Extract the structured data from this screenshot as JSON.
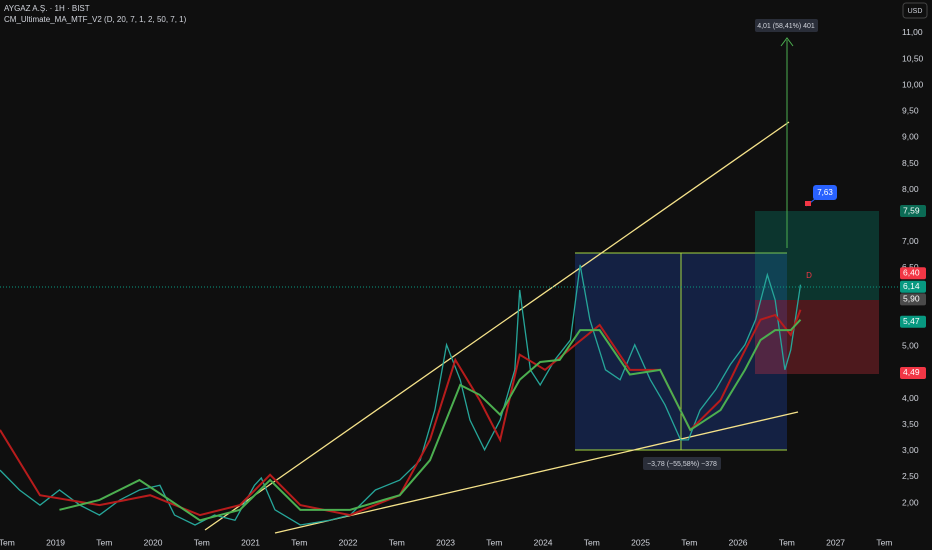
{
  "header": {
    "symbol": "AYGAZ A.Ş. · 1H · BIST",
    "indicator": "CM_Ultimate_MA_MTF_V2 (D, 20, 7, 1, 2, 50, 7, 1)",
    "currency": "USD"
  },
  "annotations": {
    "gain": "4,01 (58,41%) 401",
    "loss": "−3,78 (−55,58%) −378",
    "target": "7,63",
    "marker": "D"
  },
  "chart_data": {
    "type": "line",
    "grid": false,
    "xlim": [
      2018.43,
      2027.64
    ],
    "ylim": [
      1.35,
      11.63
    ],
    "xticks": [
      {
        "value": 2018.5,
        "label": "Tem"
      },
      2019,
      {
        "value": 2019.5,
        "label": "Tem"
      },
      2020,
      {
        "value": 2020.5,
        "label": "Tem"
      },
      2021,
      {
        "value": 2021.5,
        "label": "Tem"
      },
      2022,
      {
        "value": 2022.5,
        "label": "Tem"
      },
      2023,
      {
        "value": 2023.5,
        "label": "Tem"
      },
      2024,
      {
        "value": 2024.5,
        "label": "Tem"
      },
      2025,
      {
        "value": 2025.5,
        "label": "Tem"
      },
      2026,
      {
        "value": 2026.5,
        "label": "Tem"
      },
      2027,
      {
        "value": 2027.5,
        "label": "Tem"
      }
    ],
    "yticks": [
      {
        "value": 2,
        "label": "2,00"
      },
      {
        "value": 2.5,
        "label": "2,50"
      },
      {
        "value": 3,
        "label": "3,00"
      },
      {
        "value": 3.5,
        "label": "3,50"
      },
      {
        "value": 4,
        "label": "4,00"
      },
      {
        "value": 5,
        "label": "5,00"
      },
      {
        "value": 6.5,
        "label": "6,50"
      },
      {
        "value": 7,
        "label": "7,00"
      },
      {
        "value": 8,
        "label": "8,00"
      },
      {
        "value": 8.5,
        "label": "8,50"
      },
      {
        "value": 9,
        "label": "9,00"
      },
      {
        "value": 9.5,
        "label": "9,50"
      },
      {
        "value": 10,
        "label": "10,00"
      },
      {
        "value": 10.5,
        "label": "10,50"
      },
      {
        "value": 11,
        "label": "11,00"
      }
    ],
    "series": [
      {
        "color": "#26a69a",
        "x": [
          2018.43,
          2018.63,
          2018.84,
          2019.04,
          2019.25,
          2019.45,
          2019.66,
          2019.86,
          2020.07,
          2020.22,
          2020.43,
          2020.63,
          2020.84,
          2021.04,
          2021.11,
          2021.25,
          2021.51,
          2021.81,
          2022.02,
          2022.28,
          2022.53,
          2022.74,
          2022.89,
          2023.01,
          2023.15,
          2023.25,
          2023.4,
          2023.56,
          2023.71,
          2023.76,
          2023.87,
          2023.97,
          2024.12,
          2024.28,
          2024.38,
          2024.48,
          2024.64,
          2024.79,
          2024.94,
          2025.1,
          2025.25,
          2025.41,
          2025.49,
          2025.61,
          2025.77,
          2025.92,
          2026.07,
          2026.18,
          2026.3,
          2026.38,
          2026.48,
          2026.54,
          2026.64
        ],
        "values": [
          2.63,
          2.25,
          1.96,
          2.25,
          1.96,
          1.77,
          2.06,
          2.25,
          2.34,
          1.77,
          1.58,
          1.77,
          1.67,
          2.34,
          2.48,
          1.87,
          1.58,
          1.67,
          1.77,
          2.25,
          2.44,
          2.82,
          3.78,
          5.03,
          4.36,
          3.59,
          3.02,
          3.59,
          4.55,
          6.08,
          4.55,
          4.26,
          4.74,
          5.12,
          6.56,
          5.51,
          4.55,
          4.36,
          5.03,
          4.36,
          3.88,
          3.21,
          3.21,
          3.78,
          4.17,
          4.65,
          5.03,
          5.51,
          6.37,
          5.89,
          4.55,
          4.93,
          6.18
        ]
      },
      {
        "color": "#b71c1c",
        "x": [
          2018.43,
          2018.84,
          2019.45,
          2019.97,
          2020.48,
          2020.89,
          2021.2,
          2021.51,
          2022.02,
          2022.53,
          2022.84,
          2023.1,
          2023.35,
          2023.56,
          2023.76,
          2024.02,
          2024.33,
          2024.58,
          2024.89,
          2025.2,
          2025.51,
          2025.82,
          2026.02,
          2026.23,
          2026.38,
          2026.54,
          2026.64
        ],
        "values": [
          3.4,
          2.15,
          1.96,
          2.15,
          1.77,
          1.96,
          2.54,
          1.96,
          1.77,
          2.15,
          3.21,
          4.74,
          3.97,
          3.21,
          4.84,
          4.55,
          5.03,
          5.41,
          4.55,
          4.55,
          3.4,
          3.97,
          4.74,
          5.51,
          5.6,
          5.22,
          5.7
        ]
      },
      {
        "color": "#4caf50",
        "x": [
          2019.04,
          2019.45,
          2019.86,
          2020.17,
          2020.48,
          2020.89,
          2021.2,
          2021.51,
          2022.02,
          2022.53,
          2022.84,
          2023.15,
          2023.35,
          2023.56,
          2023.76,
          2023.97,
          2024.17,
          2024.38,
          2024.58,
          2024.89,
          2025.2,
          2025.51,
          2025.82,
          2026.07,
          2026.23,
          2026.38,
          2026.54,
          2026.64
        ],
        "values": [
          1.87,
          2.06,
          2.44,
          2.06,
          1.67,
          1.87,
          2.44,
          1.87,
          1.87,
          2.15,
          2.82,
          4.26,
          4.07,
          3.69,
          4.36,
          4.7,
          4.74,
          5.31,
          5.31,
          4.46,
          4.55,
          3.4,
          3.78,
          4.55,
          5.12,
          5.31,
          5.31,
          5.51
        ]
      }
    ],
    "price_labels": [
      {
        "value": 7.59,
        "label": "7,59",
        "color": "#0b6b55"
      },
      {
        "value": 6.4,
        "label": "6,40",
        "color": "#f23645"
      },
      {
        "value": 6.14,
        "label": "6,14",
        "color": "#089981"
      },
      {
        "value": 5.9,
        "label": "5,90",
        "color": "#4a4a4a"
      },
      {
        "value": 5.47,
        "label": "5,47",
        "color": "#089981"
      },
      {
        "value": 4.49,
        "label": "4,49",
        "color": "#f23645"
      }
    ]
  }
}
